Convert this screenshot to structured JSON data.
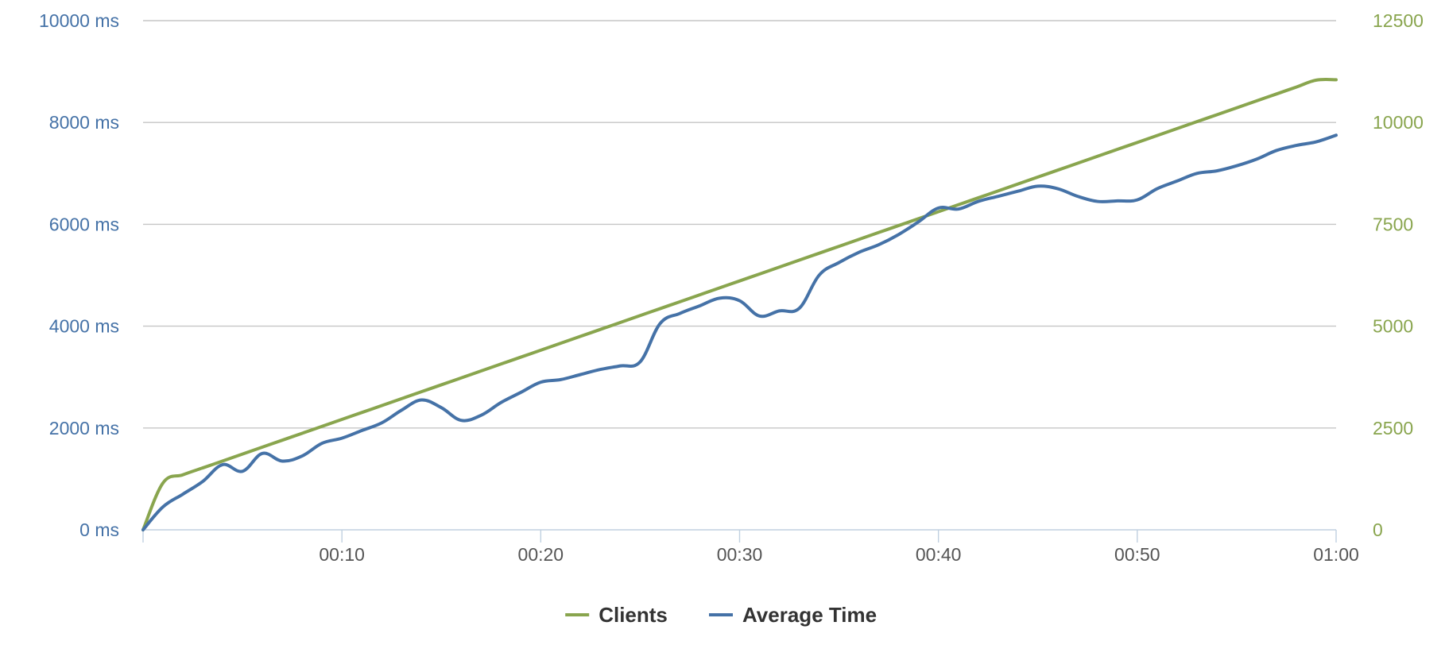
{
  "chart_data": {
    "type": "line",
    "title": "",
    "x": [
      "00:00",
      "00:01",
      "00:02",
      "00:03",
      "00:04",
      "00:05",
      "00:06",
      "00:07",
      "00:08",
      "00:09",
      "00:10",
      "00:11",
      "00:12",
      "00:13",
      "00:14",
      "00:15",
      "00:16",
      "00:17",
      "00:18",
      "00:19",
      "00:20",
      "00:21",
      "00:22",
      "00:23",
      "00:24",
      "00:25",
      "00:26",
      "00:27",
      "00:28",
      "00:29",
      "00:30",
      "00:31",
      "00:32",
      "00:33",
      "00:34",
      "00:35",
      "00:36",
      "00:37",
      "00:38",
      "00:39",
      "00:40",
      "00:41",
      "00:42",
      "00:43",
      "00:44",
      "00:45",
      "00:46",
      "00:47",
      "00:48",
      "00:49",
      "00:50",
      "00:51",
      "00:52",
      "00:53",
      "00:54",
      "00:55",
      "00:56",
      "00:57",
      "00:58",
      "00:59",
      "01:00"
    ],
    "x_ticks": [
      "00:10",
      "00:20",
      "00:30",
      "00:40",
      "00:50",
      "01:00"
    ],
    "xlim": [
      0,
      60
    ],
    "y_left": {
      "ticks": [
        "0 ms",
        "2000 ms",
        "4000 ms",
        "6000 ms",
        "8000 ms",
        "10000 ms"
      ],
      "ylim": [
        0,
        10000
      ],
      "unit": "ms"
    },
    "y_right": {
      "ticks": [
        "0",
        "2500",
        "5000",
        "7500",
        "10000",
        "12500"
      ],
      "ylim": [
        0,
        12500
      ]
    },
    "grid": true,
    "legend_position": "bottom-center",
    "series": [
      {
        "name": "Clients",
        "axis": "right",
        "color": "#89a54e",
        "values": [
          0,
          1150,
          1350,
          1520,
          1690,
          1860,
          2030,
          2200,
          2370,
          2540,
          2710,
          2880,
          3050,
          3220,
          3390,
          3560,
          3730,
          3900,
          4070,
          4240,
          4410,
          4580,
          4750,
          4920,
          5090,
          5260,
          5430,
          5600,
          5770,
          5940,
          6110,
          6280,
          6450,
          6620,
          6790,
          6960,
          7130,
          7300,
          7470,
          7640,
          7810,
          7980,
          8150,
          8320,
          8490,
          8660,
          8830,
          9000,
          9170,
          9340,
          9510,
          9680,
          9850,
          10020,
          10190,
          10360,
          10530,
          10700,
          10870,
          11040,
          11050
        ]
      },
      {
        "name": "Average Time",
        "axis": "left",
        "color": "#4572a7",
        "values": [
          0,
          450,
          700,
          950,
          1280,
          1150,
          1500,
          1350,
          1450,
          1700,
          1800,
          1950,
          2100,
          2350,
          2550,
          2400,
          2150,
          2250,
          2500,
          2700,
          2900,
          2950,
          3050,
          3150,
          3220,
          3300,
          4050,
          4250,
          4400,
          4550,
          4500,
          4200,
          4300,
          4350,
          5000,
          5250,
          5450,
          5600,
          5800,
          6050,
          6320,
          6300,
          6450,
          6550,
          6650,
          6750,
          6700,
          6550,
          6450,
          6460,
          6480,
          6700,
          6850,
          7000,
          7050,
          7150,
          7280,
          7450,
          7550,
          7620,
          7750
        ]
      }
    ]
  }
}
